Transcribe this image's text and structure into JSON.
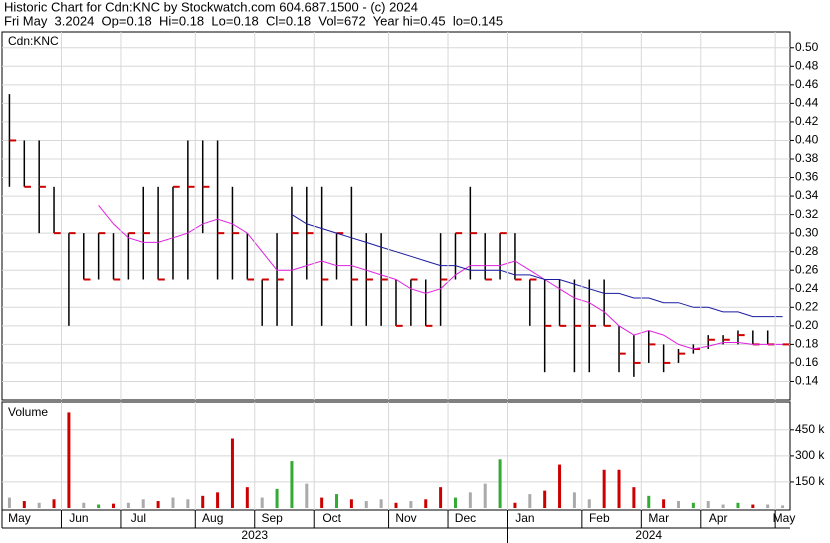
{
  "header": {
    "title": "Historic Chart for Cdn:KNC by Stockwatch.com 604.687.1500 - (c) 2024",
    "quote": "Fri May  3.2024  Op=0.18  Hi=0.18  Lo=0.18  Cl=0.18  Vol=672  Year hi=0.45  lo=0.145"
  },
  "chart_data": [
    {
      "type": "hlc",
      "label": "Cdn:KNC",
      "color": "#000000",
      "close_color": "#cc0000",
      "grid": true,
      "ylim": [
        0.12,
        0.517
      ],
      "yticks": [
        0.14,
        0.16,
        0.18,
        {
          "value": 0.2,
          "label": "0.20"
        },
        0.22,
        0.24,
        0.26,
        0.28,
        {
          "value": 0.3,
          "label": "0.30"
        },
        0.32,
        0.34,
        0.36,
        0.38,
        {
          "value": 0.4,
          "label": "0.40"
        },
        0.42,
        0.44,
        0.46,
        0.48,
        {
          "value": 0.5,
          "label": "0.50"
        }
      ],
      "high": [
        0.45,
        0.4,
        0.4,
        0.35,
        0.3,
        0.3,
        0.3,
        0.3,
        0.3,
        0.35,
        0.35,
        0.35,
        0.4,
        0.4,
        0.4,
        0.35,
        0.3,
        0.25,
        0.3,
        0.35,
        0.35,
        0.35,
        0.3,
        0.35,
        0.3,
        0.3,
        0.25,
        0.25,
        0.25,
        0.3,
        0.3,
        0.35,
        0.3,
        0.3,
        0.3,
        0.25,
        0.25,
        0.25,
        0.25,
        0.25,
        0.25,
        0.2,
        0.19,
        0.195,
        0.18,
        0.175,
        0.18,
        0.19,
        0.19,
        0.195,
        0.195,
        0.195,
        0.18
      ],
      "low": [
        0.35,
        0.35,
        0.3,
        0.3,
        0.2,
        0.25,
        0.25,
        0.25,
        0.25,
        0.25,
        0.25,
        0.25,
        0.25,
        0.3,
        0.25,
        0.25,
        0.25,
        0.2,
        0.2,
        0.2,
        0.25,
        0.2,
        0.25,
        0.2,
        0.2,
        0.2,
        0.2,
        0.2,
        0.2,
        0.2,
        0.25,
        0.25,
        0.25,
        0.25,
        0.25,
        0.2,
        0.15,
        0.2,
        0.15,
        0.15,
        0.2,
        0.15,
        0.145,
        0.16,
        0.15,
        0.16,
        0.17,
        0.175,
        0.18,
        0.18,
        0.18,
        0.18,
        0.18
      ],
      "close": [
        0.4,
        0.35,
        0.35,
        0.3,
        0.3,
        0.25,
        0.3,
        0.25,
        0.3,
        0.3,
        0.25,
        0.35,
        0.35,
        0.35,
        0.3,
        0.3,
        0.25,
        0.25,
        0.25,
        0.3,
        0.3,
        0.25,
        0.3,
        0.25,
        0.25,
        0.25,
        0.2,
        0.25,
        0.2,
        0.25,
        0.3,
        0.3,
        0.25,
        0.3,
        0.25,
        0.25,
        0.2,
        0.2,
        0.2,
        0.2,
        0.2,
        0.17,
        0.16,
        0.18,
        0.16,
        0.17,
        0.175,
        0.185,
        0.185,
        0.19,
        0.18,
        0.18,
        0.18
      ],
      "lines": [
        {
          "color": "#e020e0",
          "values": [
            null,
            null,
            null,
            null,
            null,
            null,
            0.33,
            0.31,
            0.295,
            0.29,
            0.29,
            0.295,
            0.3,
            0.31,
            0.315,
            0.31,
            0.3,
            0.28,
            0.26,
            0.26,
            0.265,
            0.27,
            0.265,
            0.265,
            0.26,
            0.255,
            0.25,
            0.24,
            0.235,
            0.24,
            0.255,
            0.265,
            0.265,
            0.265,
            0.27,
            0.26,
            0.25,
            0.24,
            0.23,
            0.225,
            0.215,
            0.2,
            0.19,
            0.195,
            0.19,
            0.18,
            0.175,
            0.178,
            0.182,
            0.182,
            0.18,
            0.18,
            0.18
          ]
        },
        {
          "color": "#1a1aa0",
          "values": [
            null,
            null,
            null,
            null,
            null,
            null,
            null,
            null,
            null,
            null,
            null,
            null,
            null,
            null,
            null,
            null,
            null,
            null,
            null,
            0.32,
            0.31,
            0.305,
            0.3,
            0.295,
            0.29,
            0.285,
            0.28,
            0.275,
            0.27,
            0.265,
            0.265,
            0.26,
            0.26,
            0.26,
            0.255,
            0.255,
            0.25,
            0.25,
            0.245,
            0.24,
            0.235,
            0.235,
            0.23,
            0.23,
            0.225,
            0.225,
            0.22,
            0.22,
            0.215,
            0.215,
            0.21,
            0.21,
            0.21
          ]
        }
      ]
    },
    {
      "type": "bar",
      "label": "Volume",
      "categories": [
        "May",
        null,
        null,
        null,
        "Jun",
        null,
        null,
        null,
        "Jul",
        null,
        null,
        null,
        null,
        "Aug",
        null,
        null,
        null,
        "Sep",
        null,
        null,
        null,
        "Oct",
        null,
        null,
        null,
        null,
        "Nov",
        null,
        null,
        null,
        "Dec",
        null,
        null,
        null,
        "Jan",
        null,
        null,
        null,
        null,
        "Feb",
        null,
        null,
        null,
        "Mar",
        null,
        null,
        null,
        "Apr",
        null,
        null,
        null,
        null,
        "May"
      ],
      "x_groups": [
        "2023",
        "2024"
      ],
      "values": [
        60000,
        40000,
        30000,
        50000,
        550000,
        30000,
        20000,
        25000,
        30000,
        50000,
        40000,
        60000,
        50000,
        70000,
        90000,
        400000,
        120000,
        60000,
        110000,
        270000,
        140000,
        60000,
        80000,
        50000,
        40000,
        50000,
        30000,
        40000,
        50000,
        120000,
        60000,
        90000,
        140000,
        280000,
        30000,
        80000,
        100000,
        250000,
        90000,
        50000,
        220000,
        220000,
        120000,
        70000,
        50000,
        40000,
        30000,
        40000,
        20000,
        30000,
        20000,
        20000,
        15000
      ],
      "colors": [
        "#aaaaaa",
        "#cc0000",
        "#aaaaaa",
        "#cc0000",
        "#cc0000",
        "#aaaaaa",
        "#33aa33",
        "#cc0000",
        "#aaaaaa",
        "#aaaaaa",
        "#cc0000",
        "#aaaaaa",
        "#aaaaaa",
        "#cc0000",
        "#cc0000",
        "#cc0000",
        "#cc0000",
        "#aaaaaa",
        "#33aa33",
        "#33aa33",
        "#aaaaaa",
        "#cc0000",
        "#33aa33",
        "#cc0000",
        "#aaaaaa",
        "#aaaaaa",
        "#cc0000",
        "#aaaaaa",
        "#cc0000",
        "#cc0000",
        "#33aa33",
        "#aaaaaa",
        "#aaaaaa",
        "#33aa33",
        "#cc0000",
        "#aaaaaa",
        "#cc0000",
        "#cc0000",
        "#aaaaaa",
        "#aaaaaa",
        "#cc0000",
        "#cc0000",
        "#cc0000",
        "#33aa33",
        "#cc0000",
        "#aaaaaa",
        "#33aa33",
        "#aaaaaa",
        "#aaaaaa",
        "#33aa33",
        "#cc0000",
        "#aaaaaa",
        "#aaaaaa"
      ],
      "ylim": [
        0,
        610000
      ],
      "yticks": [
        {
          "value": 150000,
          "label": "150 k"
        },
        {
          "value": 300000,
          "label": "300 k"
        },
        {
          "value": 450000,
          "label": "450 k"
        }
      ]
    }
  ]
}
